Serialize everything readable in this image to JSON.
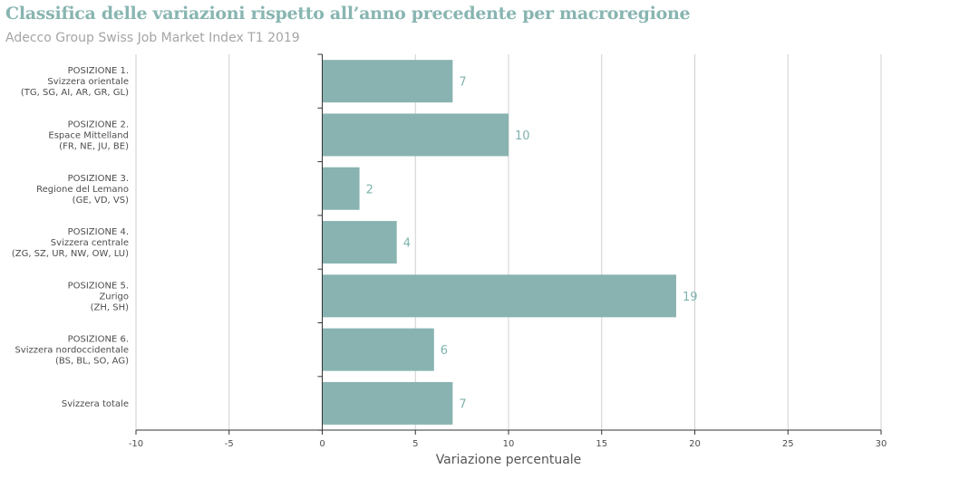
{
  "title": "Classifica delle variazioni rispetto all’anno precedente per macroregione",
  "subtitle": "Adecco Group Swiss Job Market Index T1 2019",
  "colors": {
    "bar": "#88b3b0",
    "value_label": "#7fb3ae",
    "title": "#88b5b1",
    "subtitle": "#a5a5a5",
    "grid": "#cfcfcf",
    "axis": "#333333"
  },
  "chart_data": {
    "type": "bar",
    "orientation": "horizontal",
    "categories": [
      [
        "POSIZIONE 1.",
        "Svizzera orientale",
        "(TG, SG, AI, AR, GR, GL)"
      ],
      [
        "POSIZIONE 2.",
        "Espace Mittelland",
        "(FR, NE, JU, BE)"
      ],
      [
        "POSIZIONE 3.",
        "Regione del Lemano",
        "(GE, VD, VS)"
      ],
      [
        "POSIZIONE 4.",
        "Svizzera centrale",
        "(ZG, SZ, UR, NW, OW, LU)"
      ],
      [
        "POSIZIONE 5.",
        "Zurigo",
        "(ZH, SH)"
      ],
      [
        "POSIZIONE 6.",
        "Svizzera nordoccidentale",
        "(BS, BL, SO, AG)"
      ],
      [
        "Svizzera totale"
      ]
    ],
    "values": [
      7,
      10,
      2,
      4,
      19,
      6,
      7
    ],
    "xlabel": "Variazione percentuale",
    "ylabel": "",
    "xlim": [
      -10,
      30
    ],
    "xticks": [
      -10,
      -5,
      0,
      5,
      10,
      15,
      20,
      25,
      30
    ],
    "grid": true,
    "legend": "none"
  }
}
